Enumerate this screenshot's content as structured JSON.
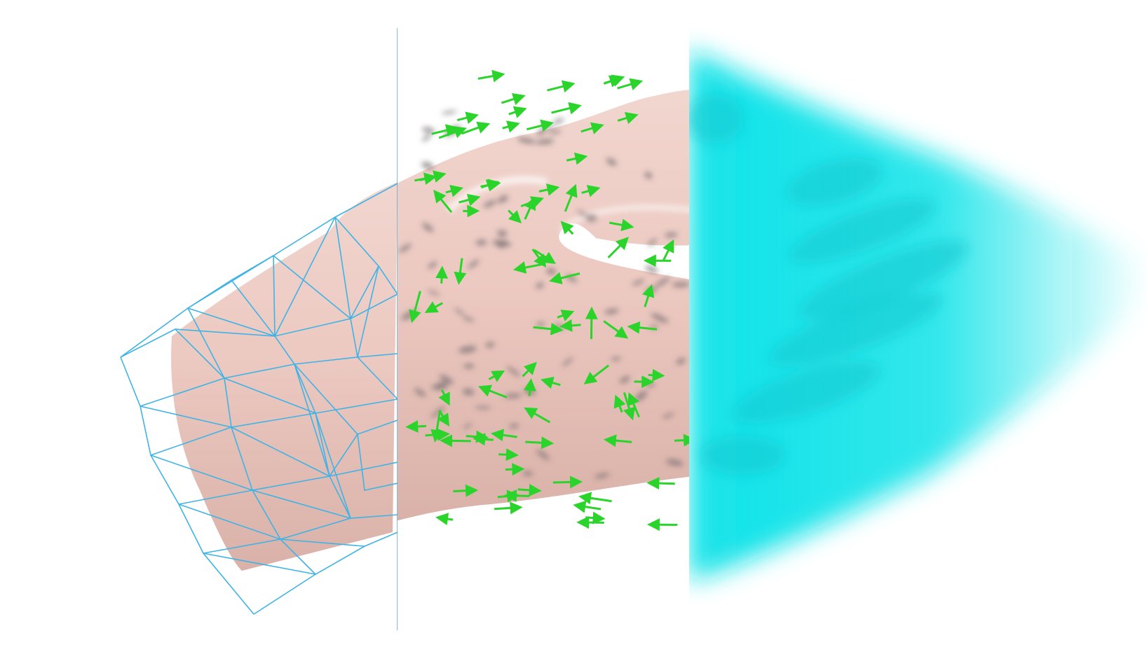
{
  "scene": {
    "subject": "hand-model",
    "panels": [
      "wireframe",
      "vector-field-surface",
      "volume-rendering"
    ],
    "colors": {
      "background": "#ffffff",
      "skin_light": "#f3d9d3",
      "skin_mid": "#e7c3bb",
      "skin_dark": "#c9a49c",
      "wire": "#3fb3e6",
      "divider": "#4aa3d6",
      "arrow": "#2bd42b",
      "arrow_dark": "#179a17",
      "blob": "#7a6f74",
      "volume": "#12e3e8"
    }
  }
}
